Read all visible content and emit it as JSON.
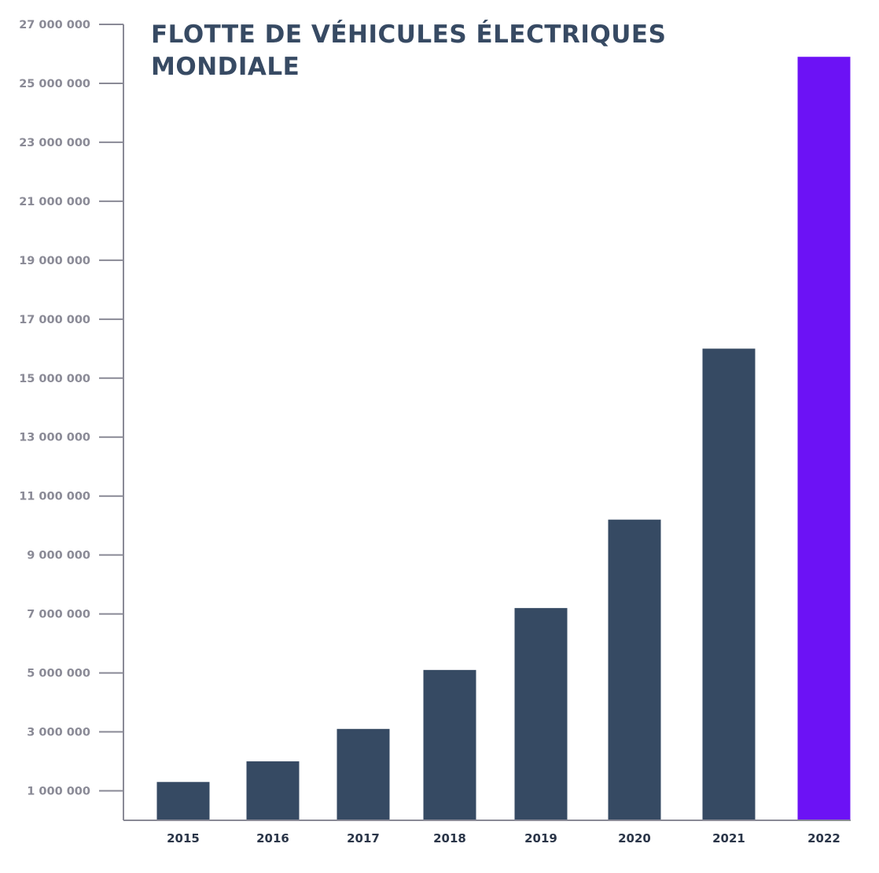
{
  "chart_data": {
    "type": "bar",
    "title": "FLOTTE DE VÉHICULES ÉLECTRIQUES MONDIALE",
    "xlabel": "",
    "ylabel": "",
    "categories": [
      "2015",
      "2016",
      "2017",
      "2018",
      "2019",
      "2020",
      "2021",
      "2022"
    ],
    "values": [
      1300000,
      2000000,
      3100000,
      5100000,
      7200000,
      10200000,
      16000000,
      25900000
    ],
    "ylim": [
      0,
      27000000
    ],
    "yticks": [
      1000000,
      3000000,
      5000000,
      7000000,
      9000000,
      11000000,
      13000000,
      15000000,
      17000000,
      19000000,
      21000000,
      23000000,
      25000000,
      27000000
    ],
    "ytick_labels": [
      "1 000 000",
      "3 000 000",
      "5 000 000",
      "7 000 000",
      "9 000 000",
      "11 000 000",
      "13 000 000",
      "15 000 000",
      "17 000 000",
      "19 000 000",
      "21 000 000",
      "23 000 000",
      "25 000 000",
      "27 000 000"
    ],
    "grid": false,
    "colors": {
      "bar": "#364a63",
      "highlight": "#6c12f5",
      "axis": "#8a8a96",
      "title": "#374a63"
    },
    "highlight_category": "2022"
  }
}
